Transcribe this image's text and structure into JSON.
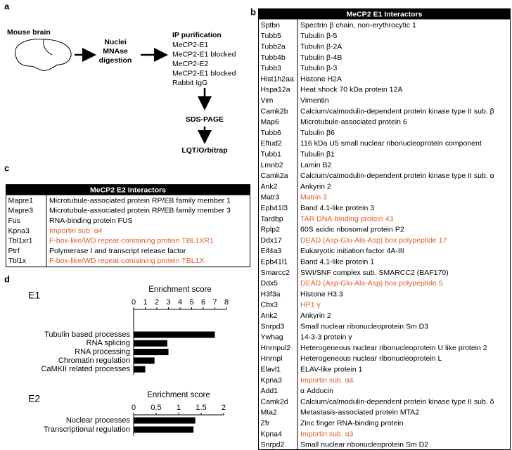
{
  "panel_a": {
    "label": "a",
    "source": "Mouse brain",
    "step": [
      "Nuclei",
      "MNAse",
      "digestion"
    ],
    "ip_title": "IP purification",
    "ip_samples": [
      "MeCP2-E1",
      "MeCP2-E1 blocked",
      "MeCP2-E2",
      "MeCP2-E1 blocked",
      "Rabbit IgG"
    ],
    "separation": "SDS-PAGE",
    "detection": "LQT/Orbitrap"
  },
  "panel_b": {
    "label": "b",
    "title": "MeCP2 E1 Interactors",
    "rows": [
      {
        "gene": "Sptbn",
        "protein": "Spectrin β chain, non-erythrocytic 1"
      },
      {
        "gene": "Tubb5",
        "protein": "Tubulin β-5"
      },
      {
        "gene": "Tubb2a",
        "protein": "Tubulin β-2A"
      },
      {
        "gene": "Tubb4b",
        "protein": "Tubulin β-4B"
      },
      {
        "gene": "Tubb3",
        "protein": "Tubulin β-3"
      },
      {
        "gene": "Hist1h2aa",
        "protein": "Histone H2A"
      },
      {
        "gene": "Hspa12a",
        "protein": "Heat shock 70 kDa protein 12A"
      },
      {
        "gene": "Vim",
        "protein": "Vimentin"
      },
      {
        "gene": "Camk2b",
        "protein": "Calcium/calmodulin-dependent protein kinase type II sub. β"
      },
      {
        "gene": "Map6",
        "protein": "Microtubule-associated protein 6"
      },
      {
        "gene": "Tubb6",
        "protein": "Tubulin β6"
      },
      {
        "gene": "Eftud2",
        "protein": "116 kDa U5 small nuclear ribonucleoprotein component"
      },
      {
        "gene": "Tubb1",
        "protein": "Tubulin β1"
      },
      {
        "gene": "Lmnb2",
        "protein": "Lamin B2"
      },
      {
        "gene": "Camk2a",
        "protein": "Calcium/calmodulin-dependent protein kinase type II sub. α"
      },
      {
        "gene": "Ank2",
        "protein": "Ankyrin 2"
      },
      {
        "gene": "Matr3",
        "protein": "Matrin 3",
        "color": "#e35a2c"
      },
      {
        "gene": "Epb41l3",
        "protein": "Band 4.1-like protein 3"
      },
      {
        "gene": "Tardbp",
        "protein": "TAR DNA-binding protein 43",
        "color": "#e35a2c"
      },
      {
        "gene": "Rplp2",
        "protein": "60S acidic ribosomal protein P2"
      },
      {
        "gene": "Ddx17",
        "protein": "DEAD (Asp-Glu-Ala-Asp) box polypeptide 17",
        "color": "#e35a2c"
      },
      {
        "gene": "Eif4a3",
        "protein": "Eukaryotic initiation factor 4A-III"
      },
      {
        "gene": "Epb41l1",
        "protein": "Band 4.1-like protein 1"
      },
      {
        "gene": "Smarcc2",
        "protein": "SWI/SNF complex sub. SMARCC2 (BAF170)"
      },
      {
        "gene": "Ddx5",
        "protein": "DEAD (Asp-Glu-Ala-Asp) box polypeptide 5",
        "color": "#e35a2c"
      },
      {
        "gene": "H3f3a",
        "protein": "Histone H3.3"
      },
      {
        "gene": "Cbx3",
        "protein": "HP1 γ",
        "color": "#e35a2c"
      },
      {
        "gene": "Ank2",
        "protein": "Ankyrin 2"
      },
      {
        "gene": "Snrpd3",
        "protein": "Small nuclear ribonucleoprotein Sm D3"
      },
      {
        "gene": "Ywhag",
        "protein": "14-3-3 protein γ"
      },
      {
        "gene": "Hnrnpul2",
        "protein": "Heterogeneous nuclear ribonucleoprotein U like protein 2"
      },
      {
        "gene": "Hnrnpl",
        "protein": "Heterogeneous nuclear ribonucleoprotein L"
      },
      {
        "gene": "Elavl1",
        "protein": "ELAV-like protein 1"
      },
      {
        "gene": "Kpna3",
        "protein": "Importin sub. α4",
        "color": "#e35a2c"
      },
      {
        "gene": "Add1",
        "protein": "α Adducin"
      },
      {
        "gene": "Camk2d",
        "protein": "Calcium/calmodulin-dependent protein kinase type II sub. δ"
      },
      {
        "gene": "Mta2",
        "protein": "Metastasis-associated protein MTA2"
      },
      {
        "gene": "Zfr",
        "protein": "Zinc finger RNA-binding protein"
      },
      {
        "gene": "Kpna4",
        "protein": "Importin sub. α3",
        "color": "#e35a2c"
      },
      {
        "gene": "Snrpd2",
        "protein": "Small nuclear ribonucleoprotein Sm D2"
      }
    ]
  },
  "panel_c": {
    "label": "c",
    "title": "MeCP2 E2 Interactors",
    "rows": [
      {
        "gene": "Mapre1",
        "protein": "Microtubule-associated protein RP/EB family member 1"
      },
      {
        "gene": "Mapre3",
        "protein": "Microtubule-associated protein RP/EB family member 3"
      },
      {
        "gene": "Fus",
        "protein": "RNA-binding protein FUS"
      },
      {
        "gene": "Kpna3",
        "protein": "Importin sub. α4",
        "color": "#e35a2c"
      },
      {
        "gene": "Tbl1xr1",
        "protein": "F-box-like/WD repeat-containing protein TBL1XR1",
        "color": "#e35a2c"
      },
      {
        "gene": "Ptrf",
        "protein": "Polymerase I and transcript release factor"
      },
      {
        "gene": "Tbl1x",
        "protein": "F-box-like/WD repeat-containing protein TBL1X",
        "color": "#e35a2c"
      }
    ]
  },
  "panel_d": {
    "label": "d"
  },
  "chart_data": [
    {
      "type": "bar",
      "orientation": "horizontal",
      "title": "E1",
      "x_label": "Enrichment score",
      "categories": [
        "Tubulin based processes",
        "RNA splicing",
        "RNA processing",
        "Chromatin regulation",
        "CaMKII related processes"
      ],
      "values": [
        7,
        2.9,
        3,
        1.8,
        1
      ],
      "color": "#000000",
      "xlim": [
        0,
        8
      ],
      "xticks": [
        0,
        1,
        2,
        3,
        4,
        5,
        6,
        7,
        8
      ]
    },
    {
      "type": "bar",
      "orientation": "horizontal",
      "title": "E2",
      "x_label": "Enrichment score",
      "categories": [
        "Nuclear processes",
        "Transcriptional regulation"
      ],
      "values": [
        1.37,
        1.33
      ],
      "color": "#000000",
      "xlim": [
        0,
        2
      ],
      "xticks": [
        0,
        0.5,
        1,
        1.5,
        2
      ]
    }
  ]
}
